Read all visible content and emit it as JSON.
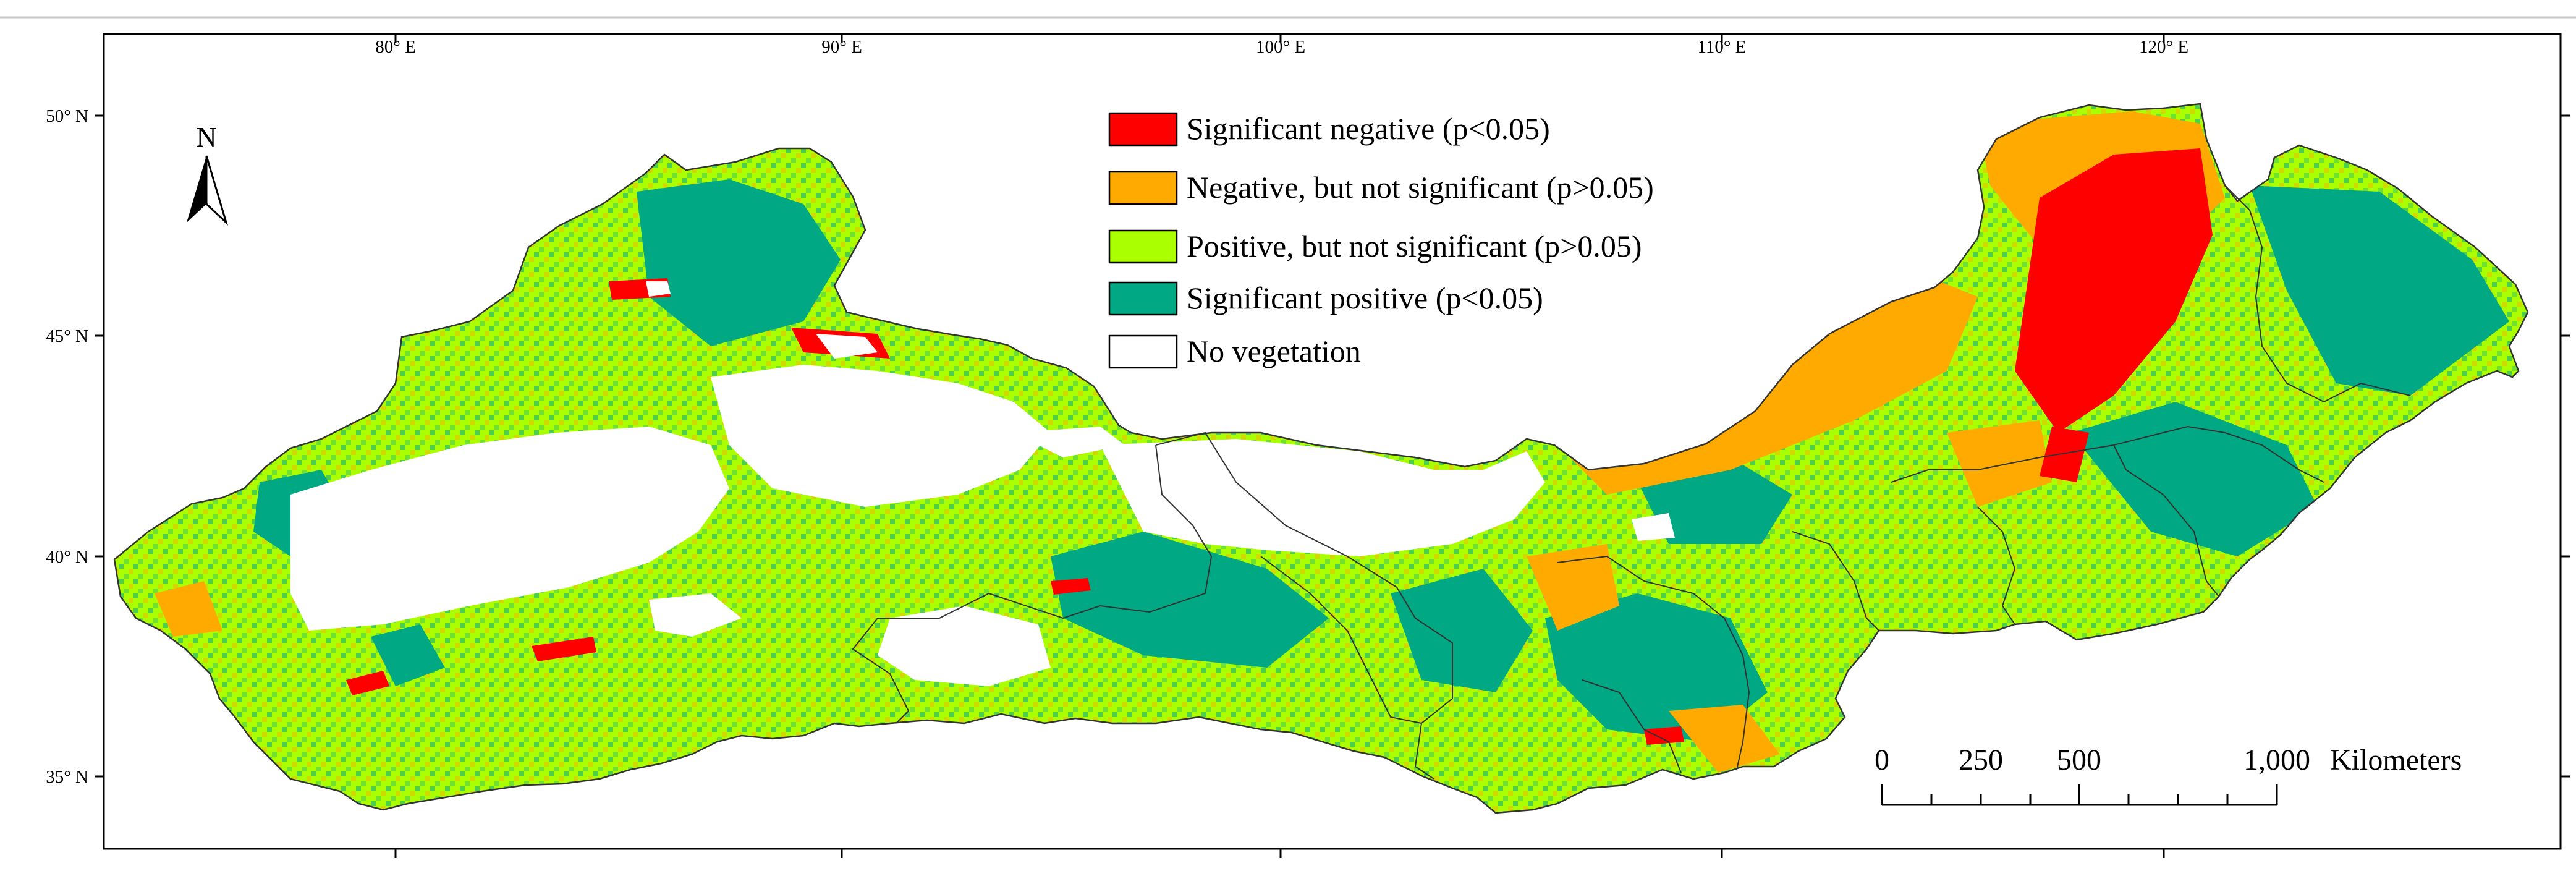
{
  "map": {
    "top_axis": {
      "longitude_labels": [
        "80° E",
        "90° E",
        "100° E",
        "110° E",
        "120° E"
      ]
    },
    "left_axis": {
      "latitude_labels": [
        "50° N",
        "45° N",
        "40° N",
        "35° N"
      ]
    },
    "north_arrow": {
      "label": "N"
    },
    "legend": {
      "items": [
        {
          "label": "Significant negative (p<0.05)",
          "color": "#ff0000"
        },
        {
          "label": "Negative, but not significant (p>0.05)",
          "color": "#ffaa00"
        },
        {
          "label": "Positive, but not significant (p>0.05)",
          "color": "#aaff00"
        },
        {
          "label": "Significant positive (p<0.05)",
          "color": "#00a884"
        },
        {
          "label": "No vegetation",
          "color": "#ffffff"
        }
      ]
    },
    "scale_bar": {
      "ticks": [
        "0",
        "250",
        "500",
        "1,000"
      ],
      "unit": "Kilometers"
    }
  }
}
